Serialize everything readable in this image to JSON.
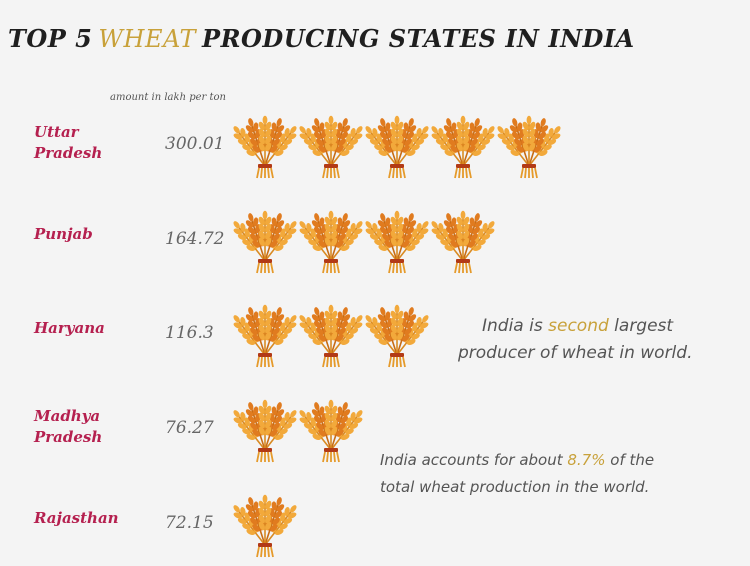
{
  "title": {
    "prefix": "TOP 5",
    "highlight": "WHEAT",
    "suffix": "PRODUCING STATES IN INDIA"
  },
  "unit_label": "amount in lakh per ton",
  "colors": {
    "state_label": "#b5204f",
    "highlight": "#c8a13a",
    "value": "#666666",
    "icon_light": "#f2a93b",
    "icon_dark": "#e07b1f"
  },
  "icon": "wheat-bundle-icon",
  "chart_data": {
    "type": "bar",
    "categories": [
      "Uttar Pradesh",
      "Punjab",
      "Haryana",
      "Madhya Pradesh",
      "Rajasthan"
    ],
    "label_lines": [
      [
        "Uttar",
        "Pradesh"
      ],
      [
        "Punjab"
      ],
      [
        "Haryana"
      ],
      [
        "Madhya",
        "Pradesh"
      ],
      [
        "Rajasthan"
      ]
    ],
    "values": [
      300.01,
      164.72,
      116.3,
      76.27,
      72.15
    ],
    "value_labels": [
      "300.01",
      "164.72",
      "116.3",
      "76.27",
      "72.15"
    ],
    "icon_counts": [
      5,
      4,
      3,
      2,
      1
    ],
    "title": "TOP 5 WHEAT PRODUCING STATES IN INDIA",
    "ylabel": "amount in lakh per ton"
  },
  "notes": {
    "note1": {
      "line1_pre": "India is",
      "line1_hl": "second",
      "line1_post": "largest",
      "line2": "producer of wheat in world."
    },
    "note2": {
      "line1_pre": "India accounts for about",
      "line1_hl": "8.7%",
      "line1_post": "of the",
      "line2": "total wheat production in the world."
    }
  }
}
